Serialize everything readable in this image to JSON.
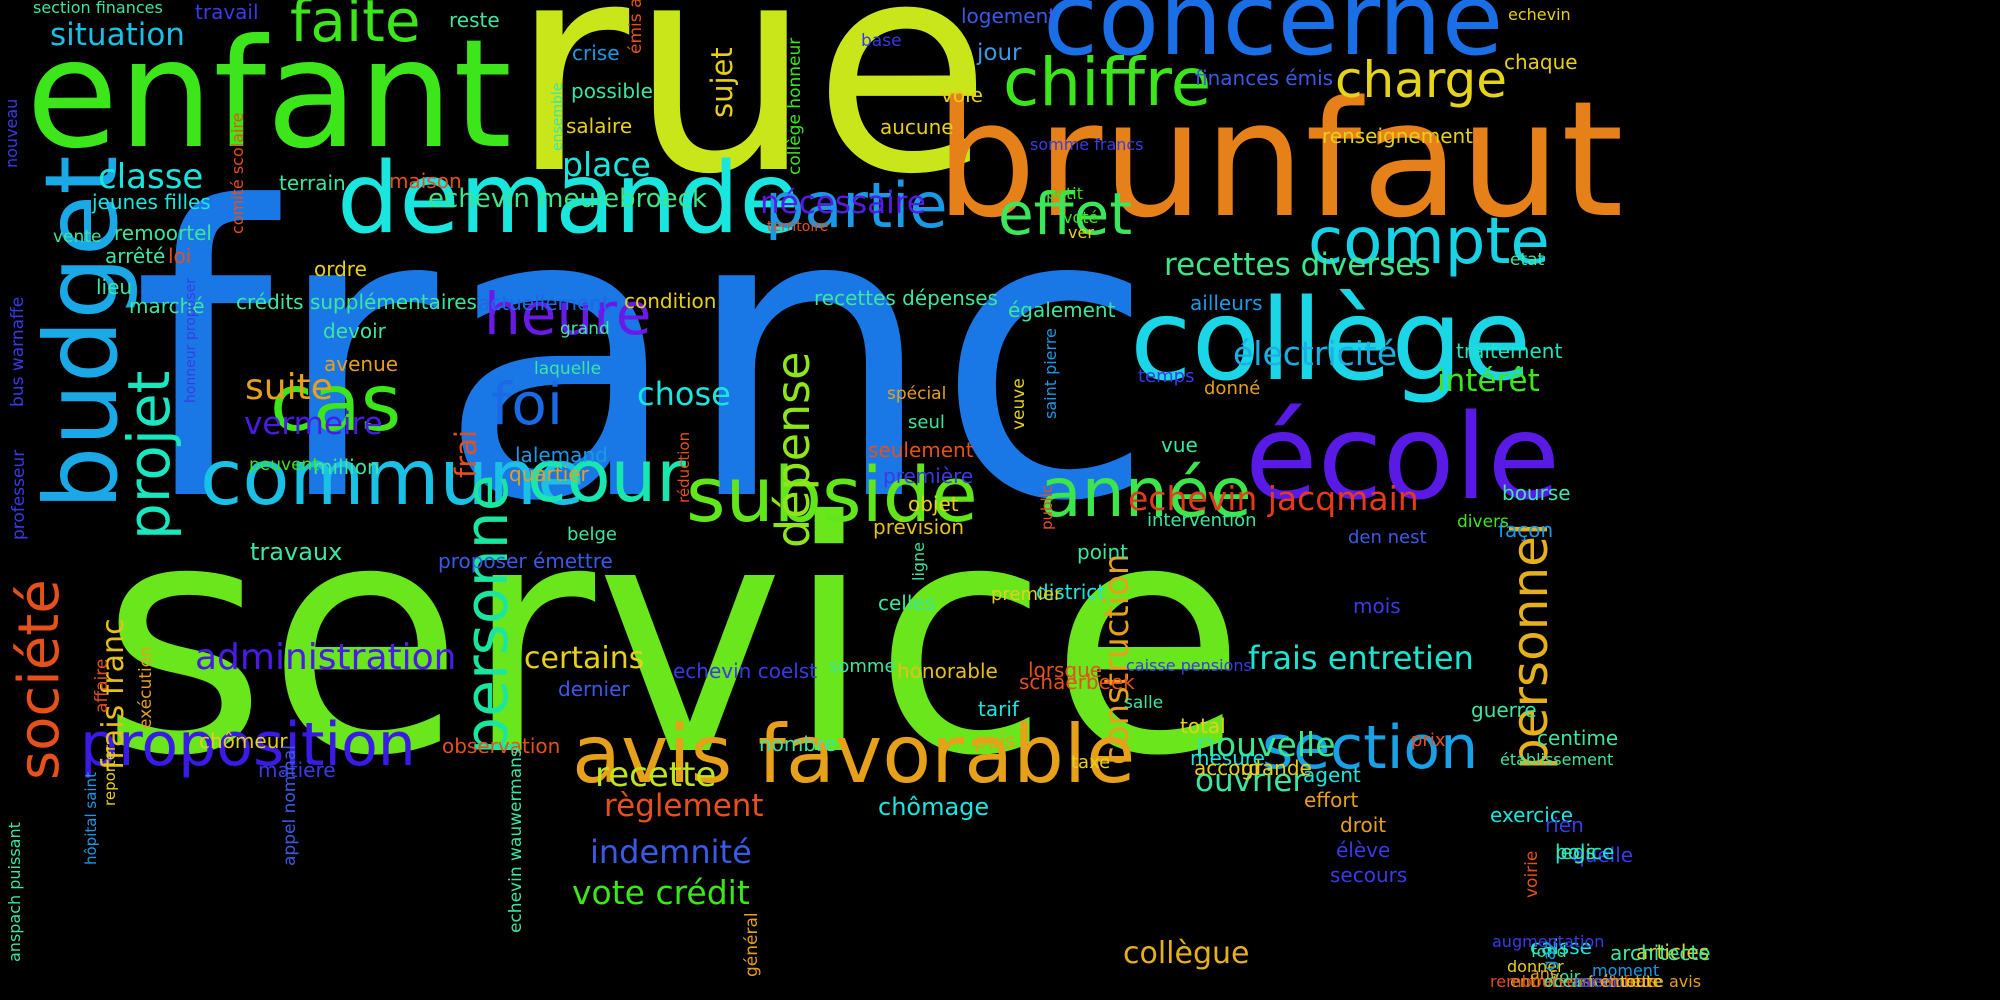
{
  "words": [
    {
      "text": "franc",
      "color": "#1a78e6"
    },
    {
      "text": "service",
      "color": "#69e61c"
    },
    {
      "text": "rue",
      "color": "#c8e61a"
    },
    {
      "text": "brunfaut",
      "color": "#e6811a"
    },
    {
      "text": "enfant",
      "color": "#3ce61a"
    },
    {
      "text": "concerne",
      "color": "#1a6ee6"
    },
    {
      "text": "collège",
      "color": "#1ad6e6"
    },
    {
      "text": "école",
      "color": "#5a1ae6"
    },
    {
      "text": "demande",
      "color": "#1ae6e0"
    },
    {
      "text": "budget",
      "color": "#1aa8e6"
    },
    {
      "text": "commune",
      "color": "#1ac0e6"
    },
    {
      "text": "subside",
      "color": "#60e61a"
    },
    {
      "text": "avis favorable",
      "color": "#e6a01a"
    },
    {
      "text": "proposition",
      "color": "#3a1ae6"
    },
    {
      "text": "année",
      "color": "#3ce64a"
    },
    {
      "text": "chiffre",
      "color": "#3ce61a"
    },
    {
      "text": "charge",
      "color": "#e6d41a"
    },
    {
      "text": "compte",
      "color": "#1ad2e6"
    },
    {
      "text": "section",
      "color": "#1aa0e6"
    },
    {
      "text": "faite",
      "color": "#3ce61a"
    },
    {
      "text": "cas",
      "color": "#3ce61a"
    },
    {
      "text": "cour",
      "color": "#1ae6b0"
    },
    {
      "text": "heure",
      "color": "#6a1ae6"
    },
    {
      "text": "effet",
      "color": "#3ce65a"
    },
    {
      "text": "partie",
      "color": "#1a9ae6"
    },
    {
      "text": "foi",
      "color": "#1a6ae6"
    },
    {
      "text": "société",
      "color": "#e6501a"
    },
    {
      "text": "projet",
      "color": "#1ae6c0"
    },
    {
      "text": "personne",
      "color": "#1ae6a0"
    },
    {
      "text": "personnel",
      "color": "#e6b01a"
    },
    {
      "text": "dépense",
      "color": "#8ee61a"
    },
    {
      "text": "construction",
      "color": "#e6a01a"
    },
    {
      "text": "frais entretien",
      "color": "#1ae6d0"
    },
    {
      "text": "recettes diverses",
      "color": "#3ce68a"
    },
    {
      "text": "électricité",
      "color": "#1ab0e6"
    },
    {
      "text": "intérêt",
      "color": "#3ce61a"
    },
    {
      "text": "echevin jacqmain",
      "color": "#e63a1a"
    },
    {
      "text": "administration",
      "color": "#4a1ae6"
    },
    {
      "text": "suite",
      "color": "#e6a01a"
    },
    {
      "text": "vermeire",
      "color": "#4a1ae6"
    },
    {
      "text": "travaux",
      "color": "#3ce6a0"
    },
    {
      "text": "chose",
      "color": "#1ae6e0"
    },
    {
      "text": "place",
      "color": "#1ae6e0"
    },
    {
      "text": "classe",
      "color": "#1ae6e0"
    },
    {
      "text": "situation",
      "color": "#1ac0e6"
    },
    {
      "text": "nécessaire",
      "color": "#5a1ae6"
    },
    {
      "text": "recette",
      "color": "#c0e61a"
    },
    {
      "text": "règlement",
      "color": "#e6501a"
    },
    {
      "text": "indemnité",
      "color": "#3a5ae6"
    },
    {
      "text": "vote crédit",
      "color": "#3ce61a"
    },
    {
      "text": "nouvelle",
      "color": "#3ce68a"
    },
    {
      "text": "ouvrier",
      "color": "#3ce6a0"
    },
    {
      "text": "collègue",
      "color": "#e6b01a"
    },
    {
      "text": "certains",
      "color": "#e6d01a"
    },
    {
      "text": "echevin meulebroeck",
      "color": "#3ce68a"
    },
    {
      "text": "frais franc",
      "color": "#e6c01a"
    },
    {
      "text": "sujet",
      "color": "#e6d01a"
    },
    {
      "text": "frai",
      "color": "#e6501a"
    },
    {
      "text": "chômage",
      "color": "#1ae6e0"
    },
    {
      "text": "crédits supplémentaires",
      "color": "#3ce6a0"
    },
    {
      "text": "recettes dépenses",
      "color": "#3ce6a0"
    },
    {
      "text": "actuellement",
      "color": "#1a6ae6"
    },
    {
      "text": "condition",
      "color": "#e6d01a"
    },
    {
      "text": "également",
      "color": "#3ce6a0"
    },
    {
      "text": "traitement",
      "color": "#1ae6c0"
    },
    {
      "text": "bourse",
      "color": "#3ce6b0"
    },
    {
      "text": "façon",
      "color": "#1a9ae6"
    },
    {
      "text": "echevin coelst",
      "color": "#3a3ae6"
    },
    {
      "text": "somme",
      "color": "#3ce6a0"
    },
    {
      "text": "honorable",
      "color": "#e6c01a"
    },
    {
      "text": "lorsque",
      "color": "#e6501a"
    },
    {
      "text": "caisse pensions",
      "color": "#3a3ae6"
    },
    {
      "text": "proposer émettre",
      "color": "#3a5ae6"
    },
    {
      "text": "lalemand",
      "color": "#1a9ae6"
    },
    {
      "text": "quartier",
      "color": "#e6a01a"
    },
    {
      "text": "million",
      "color": "#3ce6a0"
    },
    {
      "text": "peuvent",
      "color": "#3ce61a"
    },
    {
      "text": "devoir",
      "color": "#3ce6a0"
    },
    {
      "text": "avenue",
      "color": "#e6a01a"
    },
    {
      "text": "marché",
      "color": "#3ce6a0"
    },
    {
      "text": "lieu",
      "color": "#3ce6a0"
    },
    {
      "text": "arrêté",
      "color": "#3ce6a0"
    },
    {
      "text": "loi",
      "color": "#e6501a"
    },
    {
      "text": "vente",
      "color": "#3ce6a0"
    },
    {
      "text": "remoortel",
      "color": "#3ce6a0"
    },
    {
      "text": "jeunes filles",
      "color": "#1ae6e0"
    },
    {
      "text": "terrain",
      "color": "#3ce6a0"
    },
    {
      "text": "maison",
      "color": "#e6501a"
    },
    {
      "text": "ordre",
      "color": "#e6d01a"
    },
    {
      "text": "crise",
      "color": "#1a9ae6"
    },
    {
      "text": "possible",
      "color": "#3ce6a0"
    },
    {
      "text": "salaire",
      "color": "#e6d01a"
    },
    {
      "text": "travail",
      "color": "#3a3ae6"
    },
    {
      "text": "reste",
      "color": "#3ce6a0"
    },
    {
      "text": "section finances",
      "color": "#3ce6a0"
    },
    {
      "text": "logement",
      "color": "#3a5ae6"
    },
    {
      "text": "jour",
      "color": "#3a9ae6"
    },
    {
      "text": "voie",
      "color": "#e6d01a"
    },
    {
      "text": "aucune",
      "color": "#e6d01a"
    },
    {
      "text": "finances émis",
      "color": "#3a5ae6"
    },
    {
      "text": "renseignement",
      "color": "#e6d01a"
    },
    {
      "text": "somme francs",
      "color": "#3a3ae6"
    },
    {
      "text": "petit",
      "color": "#3ce61a"
    },
    {
      "text": "voté",
      "color": "#3ce61a"
    },
    {
      "text": "ver",
      "color": "#e6d01a"
    },
    {
      "text": "echevin",
      "color": "#e6d01a"
    },
    {
      "text": "chaque",
      "color": "#e6d01a"
    },
    {
      "text": "état",
      "color": "#3ce6a0"
    },
    {
      "text": "base",
      "color": "#3a3ae6"
    },
    {
      "text": "territoire",
      "color": "#e6501a"
    },
    {
      "text": "grand",
      "color": "#3ce6a0"
    },
    {
      "text": "laquelle",
      "color": "#3ce6a0"
    },
    {
      "text": "ailleurs",
      "color": "#1a9ae6"
    },
    {
      "text": "temps",
      "color": "#3a3ae6"
    },
    {
      "text": "donné",
      "color": "#e6a01a"
    },
    {
      "text": "spécial",
      "color": "#e6a01a"
    },
    {
      "text": "seul",
      "color": "#3ce6a0"
    },
    {
      "text": "seulement",
      "color": "#e6501a"
    },
    {
      "text": "première",
      "color": "#3a3ae6"
    },
    {
      "text": "objet",
      "color": "#e6d01a"
    },
    {
      "text": "prévision",
      "color": "#e6c01a"
    },
    {
      "text": "vue",
      "color": "#3ce6a0"
    },
    {
      "text": "intervention",
      "color": "#3ce6a0"
    },
    {
      "text": "divers",
      "color": "#3ce61a"
    },
    {
      "text": "den nest",
      "color": "#3a5ae6"
    },
    {
      "text": "point",
      "color": "#3ce6a0"
    },
    {
      "text": "district",
      "color": "#1ae6e0"
    },
    {
      "text": "mois",
      "color": "#3a3ae6"
    },
    {
      "text": "celles",
      "color": "#3ce6a0"
    },
    {
      "text": "premier",
      "color": "#e6d01a"
    },
    {
      "text": "belge",
      "color": "#3ce6a0"
    },
    {
      "text": "dernier",
      "color": "#3a5ae6"
    },
    {
      "text": "schaerbeek",
      "color": "#e6501a"
    },
    {
      "text": "chômeur",
      "color": "#e6d01a"
    },
    {
      "text": "matière",
      "color": "#3a3ae6"
    },
    {
      "text": "observation",
      "color": "#e6501a"
    },
    {
      "text": "nombre",
      "color": "#3ce6a0"
    },
    {
      "text": "tarif",
      "color": "#1ae6e0"
    },
    {
      "text": "puis",
      "color": "#e6a01a"
    },
    {
      "text": "salle",
      "color": "#3ce6a0"
    },
    {
      "text": "total",
      "color": "#e6d01a"
    },
    {
      "text": "mesure",
      "color": "#1ae6e0"
    },
    {
      "text": "accord",
      "color": "#e6d01a"
    },
    {
      "text": "taxe",
      "color": "#e6d01a"
    },
    {
      "text": "grande",
      "color": "#e6d01a"
    },
    {
      "text": "agent",
      "color": "#1ae6e0"
    },
    {
      "text": "effort",
      "color": "#e6a01a"
    },
    {
      "text": "droit",
      "color": "#e6a01a"
    },
    {
      "text": "élève",
      "color": "#3a3ae6"
    },
    {
      "text": "secours",
      "color": "#3a3ae6"
    },
    {
      "text": "prix",
      "color": "#e6501a"
    },
    {
      "text": "guerre",
      "color": "#3ce6a0"
    },
    {
      "text": "centime",
      "color": "#3ce6a0"
    },
    {
      "text": "établissement",
      "color": "#3ce6a0"
    },
    {
      "text": "exercice",
      "color": "#1ae6e0"
    },
    {
      "text": "rien",
      "color": "#3a3ae6"
    },
    {
      "text": "quelle",
      "color": "#3a3ae6"
    },
    {
      "text": "police",
      "color": "#1ae6e0"
    },
    {
      "text": "legs",
      "color": "#3ce6a0"
    },
    {
      "text": "articles",
      "color": "#e6d01a"
    },
    {
      "text": "architecte",
      "color": "#3ce6a0"
    },
    {
      "text": "caisse",
      "color": "#1ae6e0"
    },
    {
      "text": "fond",
      "color": "#3ce6a0"
    },
    {
      "text": "augmentation",
      "color": "#3a3ae6"
    },
    {
      "text": "donner",
      "color": "#e6d01a"
    },
    {
      "text": "voir",
      "color": "#3ce6a0"
    },
    {
      "text": "moment",
      "color": "#1a9ae6"
    },
    {
      "text": "ans",
      "color": "#e6a01a"
    },
    {
      "text": "entretien toiture",
      "color": "#e6a01a"
    },
    {
      "text": "remboursement frais",
      "color": "#e6501a"
    },
    {
      "text": "occasion",
      "color": "#3ce6a0"
    },
    {
      "text": "raison",
      "color": "#3a3ae6"
    },
    {
      "text": "émettre avis",
      "color": "#e6a01a"
    },
    {
      "text": "toute",
      "color": "#e6d01a"
    },
    {
      "text": "nouveau",
      "color": "#3a3ae6"
    },
    {
      "text": "bus warnaffe",
      "color": "#3a3ae6"
    },
    {
      "text": "professeur",
      "color": "#3a3ae6"
    },
    {
      "text": "anspach puissant",
      "color": "#3ce6a0"
    },
    {
      "text": "hôpital saint",
      "color": "#1a9ae6"
    },
    {
      "text": "reporter",
      "color": "#e6d01a"
    },
    {
      "text": "appel nominal",
      "color": "#3a5ae6"
    },
    {
      "text": "exécution",
      "color": "#e6a01a"
    },
    {
      "text": "affaire",
      "color": "#e6501a"
    },
    {
      "text": "honneur proposer",
      "color": "#3a3ae6"
    },
    {
      "text": "comité scolaire",
      "color": "#e6501a"
    },
    {
      "text": "echevin wauwermans",
      "color": "#3ce6a0"
    },
    {
      "text": "ensemble",
      "color": "#3ce6a0"
    },
    {
      "text": "émis avis",
      "color": "#e6501a"
    },
    {
      "text": "collège honneur",
      "color": "#3ce61a"
    },
    {
      "text": "réduction",
      "color": "#e6501a"
    },
    {
      "text": "veuve",
      "color": "#e6d01a"
    },
    {
      "text": "saint pierre",
      "color": "#1a9ae6"
    },
    {
      "text": "public",
      "color": "#e6501a"
    },
    {
      "text": "ligne",
      "color": "#3ce6a0"
    },
    {
      "text": "général",
      "color": "#e6a01a"
    },
    {
      "text": "voirie",
      "color": "#e6501a"
    },
    {
      "text": "gaz",
      "color": "#1a9ae6"
    },
    {
      "text": "chef",
      "color": "#3a5ae6"
    },
    {
      "text": "emprunt",
      "color": "#3a3ae6"
    },
    {
      "text": "crédit supplémentaire",
      "color": "#1ae6e0"
    }
  ]
}
